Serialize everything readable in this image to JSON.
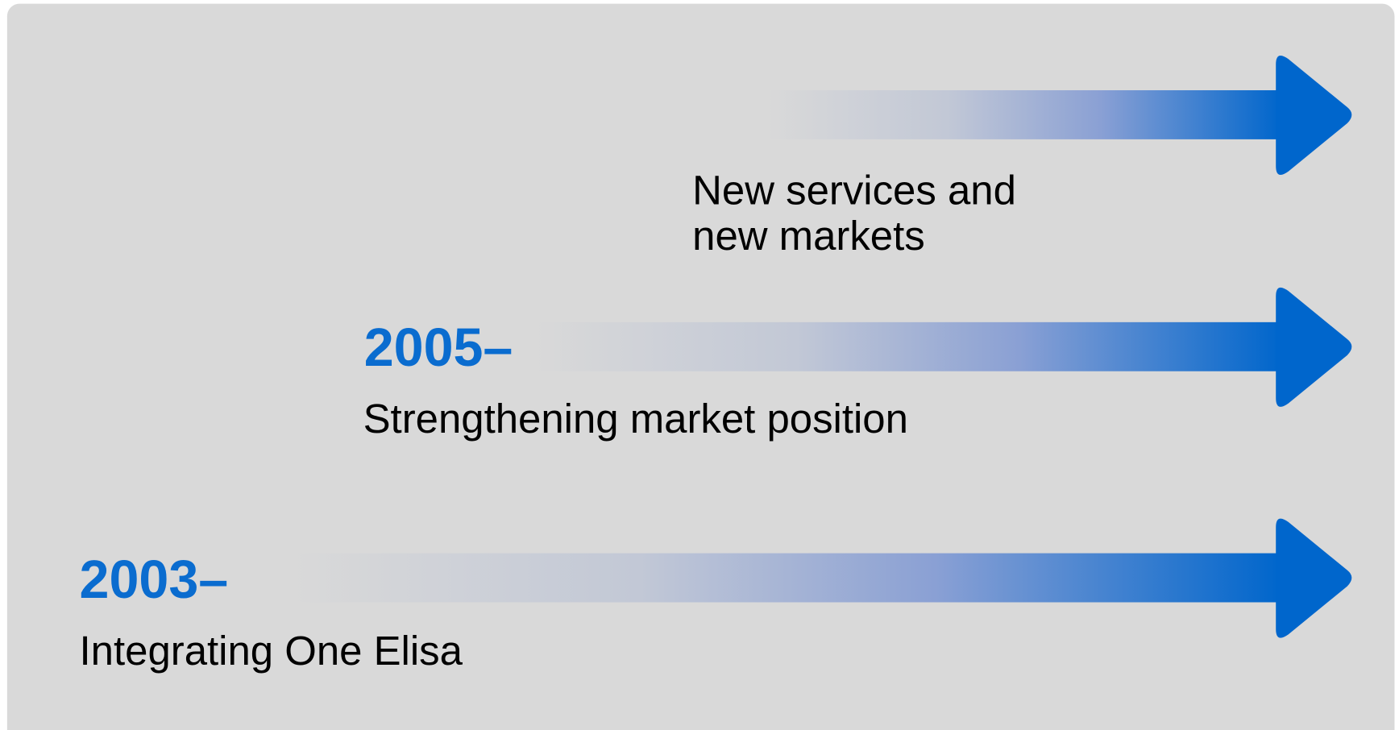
{
  "stages": [
    {
      "year": "2003–",
      "label": "Integrating One Elisa"
    },
    {
      "year": "2005–",
      "label": "Strengthening market position"
    },
    {
      "label_lines": [
        "New services and",
        "new markets"
      ]
    }
  ]
}
